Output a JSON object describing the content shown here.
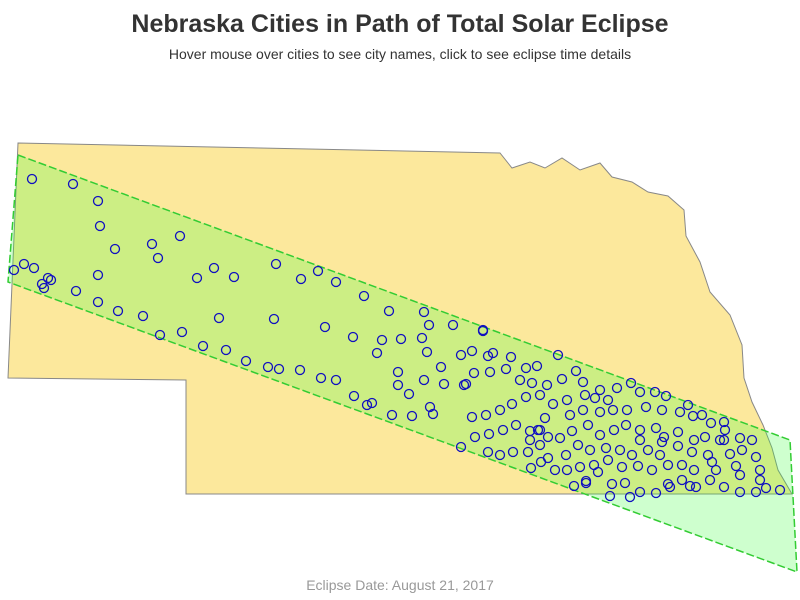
{
  "header": {
    "title": "Nebraska Cities in Path of Total Solar Eclipse",
    "subtitle": "Hover mouse over cities to see city names, click to see eclipse time details"
  },
  "footer": {
    "text": "Eclipse Date: August 21, 2017"
  }
}
